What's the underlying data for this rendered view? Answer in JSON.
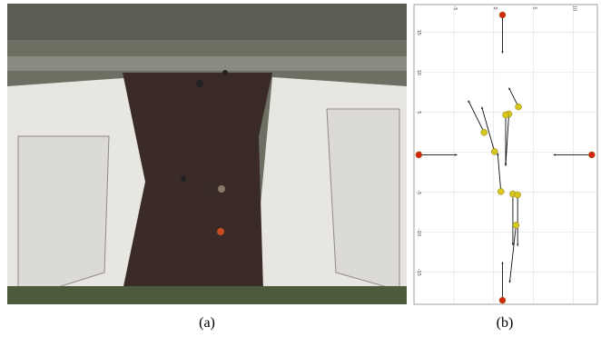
{
  "captions": [
    "(a)",
    "(b)"
  ],
  "chart_data": {
    "type": "scatter",
    "xlim": [
      -10,
      13
    ],
    "ylim": [
      -19,
      18.5
    ],
    "xticks": [
      -5,
      0,
      5,
      10
    ],
    "yticks": [
      15,
      10,
      5,
      0,
      -5,
      -10,
      -15
    ],
    "grid": true,
    "agents": {
      "color": "#d6c71e",
      "x": [
        3.1,
        1.9,
        1.5,
        -1.2,
        0.1,
        0.9,
        2.4,
        3.0,
        2.8
      ],
      "y": [
        5.7,
        4.8,
        4.7,
        2.5,
        0.1,
        -4.9,
        -5.2,
        -5.3,
        -9.1
      ],
      "dx": [
        -0.3,
        -0.1,
        0,
        -0.5,
        -0.4,
        -0.1,
        0,
        0,
        -0.2
      ],
      "dy": [
        0.6,
        -1.6,
        -1.6,
        1.0,
        1.4,
        1.2,
        -1.6,
        -1.6,
        -1.8
      ]
    },
    "goals": {
      "color": "#d2260f",
      "x": [
        1.1,
        1.1,
        -9.4,
        12.3
      ],
      "y": [
        17.2,
        -18.5,
        -0.3,
        -0.3
      ],
      "dx": [
        0,
        0,
        1.2,
        -1.2
      ],
      "dy": [
        -1.2,
        1.2,
        0,
        0
      ]
    }
  }
}
